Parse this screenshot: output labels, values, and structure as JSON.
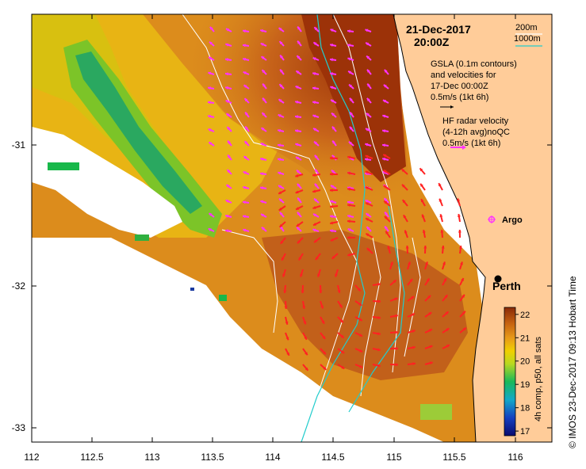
{
  "map": {
    "date": "21-Dec-2017",
    "time": "20:00Z",
    "contour_legend": {
      "line1": "200m",
      "line2": "1000m",
      "color_200m": "#ffffff",
      "color_1000m": "#22cccc"
    },
    "gsla_text": [
      "GSLA (0.1m contours)",
      "and velocities for",
      "17-Dec 00:00Z",
      "0.5m/s (1kt 6h)"
    ],
    "radar_text": [
      "HF radar velocity",
      "(4-12h avg)noQC",
      "0.5m/s (1kt 6h)"
    ],
    "argo_label": "Argo",
    "city_label": "Perth",
    "credit": "© IMOS 23-Dec-2017 09:13 Hobart Time",
    "colorbar": {
      "label": "4h comp, p50, all sats",
      "ticks": [
        "22",
        "21",
        "20",
        "19",
        "18",
        "17"
      ],
      "range": [
        16.8,
        22.3
      ]
    },
    "x_ticks": [
      "112",
      "112.5",
      "113",
      "113.5",
      "114",
      "114.5",
      "115",
      "115.5",
      "116"
    ],
    "y_ticks": [
      "-31",
      "-32",
      "-33"
    ],
    "colors": {
      "land": "#ffcc99",
      "radar_arrow": "#ff33ff",
      "gsla_arrow": "#ff2222",
      "argo": "#ff33ff"
    }
  }
}
